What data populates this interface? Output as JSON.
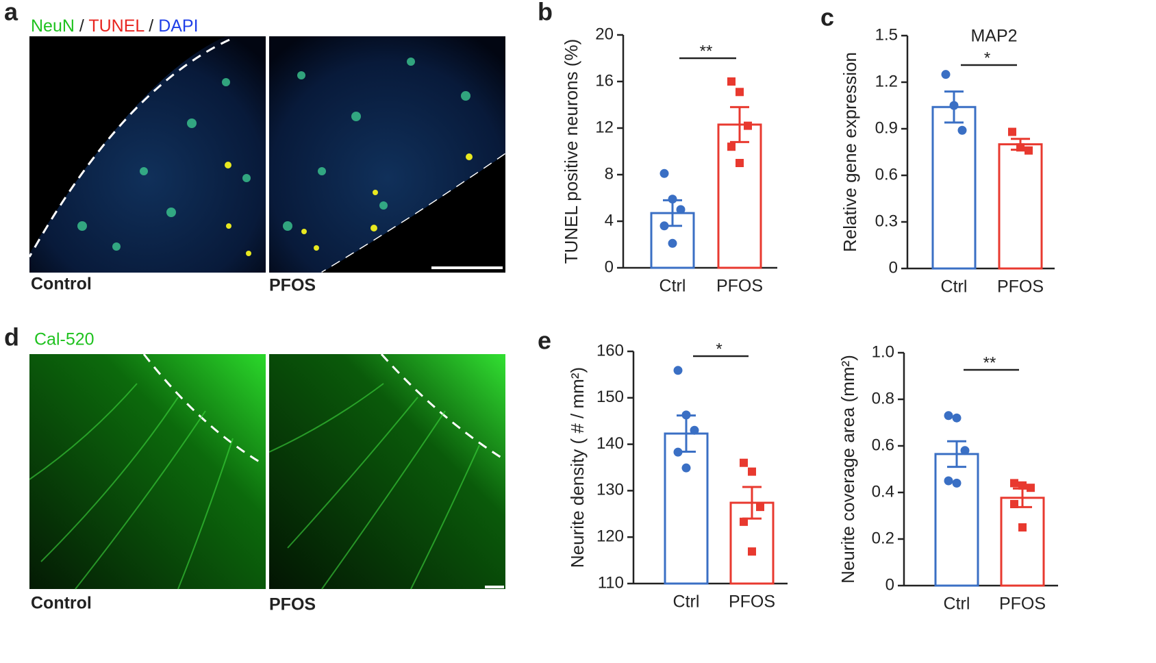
{
  "figure": {
    "panel_labels": [
      "a",
      "b",
      "c",
      "d",
      "e"
    ],
    "stain_labels": [
      {
        "text": "NeuN",
        "color": "#1fc21f"
      },
      {
        "text": " / ",
        "color": "#222222"
      },
      {
        "text": "TUNEL",
        "color": "#e8241f"
      },
      {
        "text": " / ",
        "color": "#222222"
      },
      {
        "text": "DAPI",
        "color": "#1f3fe8"
      }
    ],
    "calcium_label": {
      "text": "Cal-520",
      "color": "#1fc21f"
    },
    "image_labels": [
      "Control",
      "PFOS",
      "Control",
      "PFOS"
    ]
  },
  "chart_data": [
    {
      "type": "bar",
      "ylabel": "TUNEL positive neurons (%)",
      "categories": [
        "Ctrl",
        "PFOS"
      ],
      "colors": [
        "#3a6fc4",
        "#e8392f"
      ],
      "markers": [
        "circle",
        "square"
      ],
      "values": [
        4.7,
        12.3
      ],
      "errors": [
        1.1,
        1.5
      ],
      "points": [
        [
          8.1,
          5.9,
          5.0,
          3.6,
          2.1
        ],
        [
          16.0,
          15.1,
          12.2,
          10.4,
          9.0
        ]
      ],
      "ylim": [
        0,
        20
      ],
      "yticks": [
        0,
        4,
        8,
        12,
        16,
        20
      ],
      "significance": "**"
    },
    {
      "type": "bar",
      "title": "MAP2",
      "ylabel": "Relative gene expression",
      "categories": [
        "Ctrl",
        "PFOS"
      ],
      "colors": [
        "#3a6fc4",
        "#e8392f"
      ],
      "markers": [
        "circle",
        "square"
      ],
      "values": [
        1.04,
        0.8
      ],
      "errors": [
        0.1,
        0.035
      ],
      "points": [
        [
          1.25,
          1.05,
          0.89
        ],
        [
          0.88,
          0.78,
          0.76
        ]
      ],
      "ylim": [
        0,
        1.5
      ],
      "yticks": [
        0,
        0.3,
        0.6,
        0.9,
        1.2,
        1.5
      ],
      "significance": "*"
    },
    {
      "type": "bar",
      "ylabel": "Neurite density ( # / mm²)",
      "categories": [
        "Ctrl",
        "PFOS"
      ],
      "colors": [
        "#3a6fc4",
        "#e8392f"
      ],
      "markers": [
        "circle",
        "square"
      ],
      "values": [
        142.3,
        127.4
      ],
      "errors": [
        3.9,
        3.4
      ],
      "points": [
        [
          155.9,
          146.3,
          143.0,
          138.3,
          134.9
        ],
        [
          136.0,
          134.1,
          126.5,
          123.3,
          116.9
        ]
      ],
      "ylim": [
        110,
        160
      ],
      "yticks": [
        110,
        120,
        130,
        140,
        150,
        160
      ],
      "significance": "*"
    },
    {
      "type": "bar",
      "ylabel": "Neurite coverage area (mm²)",
      "categories": [
        "Ctrl",
        "PFOS"
      ],
      "colors": [
        "#3a6fc4",
        "#e8392f"
      ],
      "markers": [
        "circle",
        "square"
      ],
      "values": [
        0.565,
        0.377
      ],
      "errors": [
        0.055,
        0.04
      ],
      "points": [
        [
          0.73,
          0.72,
          0.58,
          0.45,
          0.44
        ],
        [
          0.44,
          0.43,
          0.42,
          0.35,
          0.25
        ]
      ],
      "ylim": [
        0,
        1
      ],
      "yticks": [
        0,
        0.2,
        0.4,
        0.6,
        0.8,
        {
          "value": 1,
          "label": "1.0"
        }
      ],
      "significance": "**"
    }
  ]
}
